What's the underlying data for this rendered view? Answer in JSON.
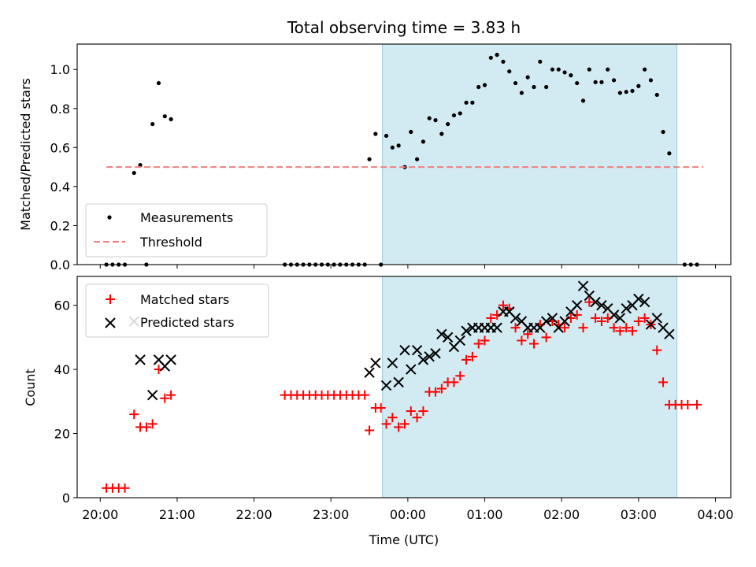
{
  "figure_title": "Total observing time = 3.83 h",
  "colors": {
    "measurements": "#000000",
    "threshold": "#f08080",
    "matched": "#ff0000",
    "predicted": "#000000",
    "shade": "#add8e6"
  },
  "chart_data": [
    {
      "type": "scatter",
      "panel": "top",
      "title": "Total observing time = 3.83 h",
      "xlabel": "",
      "ylabel": "Matched/Predicted stars",
      "x_unit": "hours since 20:00 UTC",
      "xlim": [
        -0.3,
        8.2
      ],
      "ylim": [
        0,
        1.13
      ],
      "yticks": [
        0.0,
        0.2,
        0.4,
        0.6,
        0.8,
        1.0
      ],
      "ytick_labels": [
        "0.0",
        "0.2",
        "0.4",
        "0.6",
        "0.8",
        "1.0"
      ],
      "xticks": [
        0,
        1,
        2,
        3,
        4,
        5,
        6,
        7,
        8
      ],
      "grid": false,
      "legend": {
        "placement": "lower-left",
        "entries": [
          "Measurements",
          "Threshold"
        ]
      },
      "shaded_interval": {
        "x": [
          3.67,
          7.5
        ]
      },
      "series": [
        {
          "name": "Measurements",
          "marker": "dot",
          "points": [
            [
              0.08,
              0
            ],
            [
              0.16,
              0
            ],
            [
              0.24,
              0
            ],
            [
              0.32,
              0
            ],
            [
              0.44,
              0.47
            ],
            [
              0.52,
              0.51
            ],
            [
              0.6,
              0
            ],
            [
              0.68,
              0.72
            ],
            [
              0.76,
              0.93
            ],
            [
              0.84,
              0.76
            ],
            [
              0.92,
              0.745
            ],
            [
              2.4,
              0
            ],
            [
              2.48,
              0
            ],
            [
              2.56,
              0
            ],
            [
              2.64,
              0
            ],
            [
              2.72,
              0
            ],
            [
              2.8,
              0
            ],
            [
              2.88,
              0
            ],
            [
              2.96,
              0
            ],
            [
              3.04,
              0
            ],
            [
              3.12,
              0
            ],
            [
              3.2,
              0
            ],
            [
              3.28,
              0
            ],
            [
              3.36,
              0
            ],
            [
              3.44,
              0
            ],
            [
              3.5,
              0.54
            ],
            [
              3.58,
              0.67
            ],
            [
              3.65,
              0
            ],
            [
              3.72,
              0.66
            ],
            [
              3.8,
              0.6
            ],
            [
              3.88,
              0.61
            ],
            [
              3.96,
              0.5
            ],
            [
              4.04,
              0.68
            ],
            [
              4.12,
              0.54
            ],
            [
              4.2,
              0.63
            ],
            [
              4.28,
              0.75
            ],
            [
              4.36,
              0.74
            ],
            [
              4.44,
              0.67
            ],
            [
              4.52,
              0.72
            ],
            [
              4.6,
              0.765
            ],
            [
              4.68,
              0.775
            ],
            [
              4.76,
              0.83
            ],
            [
              4.84,
              0.83
            ],
            [
              4.92,
              0.91
            ],
            [
              5.0,
              0.92
            ],
            [
              5.08,
              1.06
            ],
            [
              5.16,
              1.075
            ],
            [
              5.24,
              1.04
            ],
            [
              5.32,
              0.99
            ],
            [
              5.4,
              0.93
            ],
            [
              5.48,
              0.88
            ],
            [
              5.56,
              0.96
            ],
            [
              5.64,
              0.91
            ],
            [
              5.72,
              1.04
            ],
            [
              5.8,
              0.91
            ],
            [
              5.88,
              1.0
            ],
            [
              5.96,
              1.0
            ],
            [
              6.04,
              0.985
            ],
            [
              6.12,
              0.97
            ],
            [
              6.2,
              0.93
            ],
            [
              6.28,
              0.84
            ],
            [
              6.36,
              1.0
            ],
            [
              6.44,
              0.935
            ],
            [
              6.52,
              0.935
            ],
            [
              6.6,
              1.0
            ],
            [
              6.68,
              0.945
            ],
            [
              6.76,
              0.88
            ],
            [
              6.84,
              0.885
            ],
            [
              6.92,
              0.89
            ],
            [
              7.0,
              0.915
            ],
            [
              7.08,
              1.0
            ],
            [
              7.16,
              0.945
            ],
            [
              7.24,
              0.87
            ],
            [
              7.32,
              0.68
            ],
            [
              7.4,
              0.57
            ],
            [
              7.6,
              0
            ],
            [
              7.68,
              0
            ],
            [
              7.76,
              0
            ]
          ]
        },
        {
          "name": "Threshold",
          "marker": "dashed-line",
          "points": [
            [
              0.08,
              0.5
            ],
            [
              7.84,
              0.5
            ]
          ]
        }
      ]
    },
    {
      "type": "scatter",
      "panel": "bottom",
      "title": "",
      "xlabel": "Time (UTC)",
      "ylabel": "Count",
      "x_unit": "hours since 20:00 UTC",
      "xlim": [
        -0.3,
        8.2
      ],
      "ylim": [
        0,
        69
      ],
      "yticks": [
        0,
        20,
        40,
        60
      ],
      "ytick_labels": [
        "0",
        "20",
        "40",
        "60"
      ],
      "xticks": [
        0,
        1,
        2,
        3,
        4,
        5,
        6,
        7,
        8
      ],
      "xtick_labels": [
        "20:00",
        "21:00",
        "22:00",
        "23:00",
        "00:00",
        "01:00",
        "02:00",
        "03:00",
        "04:00"
      ],
      "grid": false,
      "legend": {
        "placement": "upper-left",
        "entries": [
          "Matched stars",
          "Predicted stars"
        ]
      },
      "shaded_interval": {
        "x": [
          3.67,
          7.5
        ]
      },
      "series": [
        {
          "name": "Matched stars",
          "marker": "plus",
          "points": [
            [
              0.08,
              3
            ],
            [
              0.16,
              3
            ],
            [
              0.24,
              3
            ],
            [
              0.32,
              3
            ],
            [
              0.44,
              26
            ],
            [
              0.52,
              22
            ],
            [
              0.6,
              22
            ],
            [
              0.68,
              23
            ],
            [
              0.76,
              40
            ],
            [
              0.84,
              31
            ],
            [
              0.92,
              32
            ],
            [
              2.4,
              32
            ],
            [
              2.48,
              32
            ],
            [
              2.56,
              32
            ],
            [
              2.64,
              32
            ],
            [
              2.72,
              32
            ],
            [
              2.8,
              32
            ],
            [
              2.88,
              32
            ],
            [
              2.96,
              32
            ],
            [
              3.04,
              32
            ],
            [
              3.12,
              32
            ],
            [
              3.2,
              32
            ],
            [
              3.28,
              32
            ],
            [
              3.36,
              32
            ],
            [
              3.44,
              32
            ],
            [
              3.5,
              21
            ],
            [
              3.58,
              28
            ],
            [
              3.65,
              28
            ],
            [
              3.72,
              23
            ],
            [
              3.8,
              25
            ],
            [
              3.88,
              22
            ],
            [
              3.96,
              23
            ],
            [
              4.04,
              27
            ],
            [
              4.12,
              25
            ],
            [
              4.2,
              27
            ],
            [
              4.28,
              33
            ],
            [
              4.36,
              33
            ],
            [
              4.44,
              34
            ],
            [
              4.52,
              36
            ],
            [
              4.6,
              36
            ],
            [
              4.68,
              38
            ],
            [
              4.76,
              43
            ],
            [
              4.84,
              44
            ],
            [
              4.92,
              48
            ],
            [
              5.0,
              49
            ],
            [
              5.08,
              56
            ],
            [
              5.16,
              57
            ],
            [
              5.24,
              60
            ],
            [
              5.32,
              59
            ],
            [
              5.4,
              53
            ],
            [
              5.48,
              49
            ],
            [
              5.56,
              51
            ],
            [
              5.64,
              48
            ],
            [
              5.72,
              54
            ],
            [
              5.8,
              50
            ],
            [
              5.88,
              55
            ],
            [
              5.96,
              54
            ],
            [
              6.04,
              53
            ],
            [
              6.12,
              56
            ],
            [
              6.2,
              57
            ],
            [
              6.28,
              53
            ],
            [
              6.36,
              61
            ],
            [
              6.44,
              56
            ],
            [
              6.52,
              55
            ],
            [
              6.6,
              56
            ],
            [
              6.68,
              53
            ],
            [
              6.76,
              52
            ],
            [
              6.84,
              53
            ],
            [
              6.92,
              52
            ],
            [
              7.0,
              55
            ],
            [
              7.08,
              56
            ],
            [
              7.16,
              54
            ],
            [
              7.24,
              46
            ],
            [
              7.32,
              36
            ],
            [
              7.4,
              29
            ],
            [
              7.48,
              29
            ],
            [
              7.56,
              29
            ],
            [
              7.64,
              29
            ],
            [
              7.76,
              29
            ]
          ]
        },
        {
          "name": "Predicted stars",
          "marker": "x",
          "points": [
            [
              0.44,
              55
            ],
            [
              0.52,
              43
            ],
            [
              0.68,
              32
            ],
            [
              0.76,
              43
            ],
            [
              0.84,
              41
            ],
            [
              0.92,
              43
            ],
            [
              3.5,
              39
            ],
            [
              3.58,
              42
            ],
            [
              3.72,
              35
            ],
            [
              3.8,
              42
            ],
            [
              3.88,
              36
            ],
            [
              3.96,
              46
            ],
            [
              4.04,
              40
            ],
            [
              4.12,
              46
            ],
            [
              4.2,
              43
            ],
            [
              4.28,
              44
            ],
            [
              4.36,
              45
            ],
            [
              4.44,
              51
            ],
            [
              4.52,
              50
            ],
            [
              4.6,
              47
            ],
            [
              4.68,
              49
            ],
            [
              4.76,
              52
            ],
            [
              4.84,
              53
            ],
            [
              4.92,
              53
            ],
            [
              5.0,
              53
            ],
            [
              5.08,
              53
            ],
            [
              5.16,
              53
            ],
            [
              5.24,
              58
            ],
            [
              5.32,
              58
            ],
            [
              5.4,
              56
            ],
            [
              5.48,
              55
            ],
            [
              5.56,
              53
            ],
            [
              5.64,
              53
            ],
            [
              5.72,
              53
            ],
            [
              5.8,
              55
            ],
            [
              5.88,
              56
            ],
            [
              5.96,
              53
            ],
            [
              6.04,
              55
            ],
            [
              6.12,
              58
            ],
            [
              6.2,
              60
            ],
            [
              6.28,
              66
            ],
            [
              6.36,
              63
            ],
            [
              6.44,
              61
            ],
            [
              6.52,
              60
            ],
            [
              6.6,
              59
            ],
            [
              6.68,
              57
            ],
            [
              6.76,
              56
            ],
            [
              6.84,
              59
            ],
            [
              6.92,
              60
            ],
            [
              7.0,
              62
            ],
            [
              7.08,
              61
            ],
            [
              7.16,
              54
            ],
            [
              7.24,
              56
            ],
            [
              7.32,
              53
            ],
            [
              7.4,
              51
            ]
          ]
        }
      ]
    }
  ]
}
